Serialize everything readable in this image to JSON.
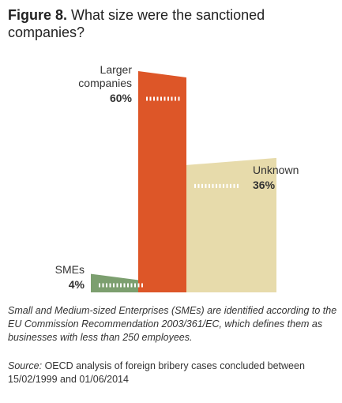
{
  "chart_data": {
    "type": "bar",
    "title_label": "Figure 8.",
    "title": "What size were the sanctioned companies?",
    "categories": [
      "SMEs",
      "Larger companies",
      "Unknown"
    ],
    "values": [
      4,
      60,
      36
    ],
    "value_labels": [
      "4%",
      "60%",
      "36%"
    ],
    "colors": [
      "#7c9f6f",
      "#dd5628",
      "#e7dbab"
    ],
    "note": "Small and Medium-sized Enterprises (SMEs) are identified according to the EU Commission Recommendation 2003/361/EC, which defines them as businesses with less than 250 employees.",
    "source_label": "Source:",
    "source": "OECD analysis of foreign bribery cases concluded between 15/02/1999 and 01/06/2014"
  }
}
